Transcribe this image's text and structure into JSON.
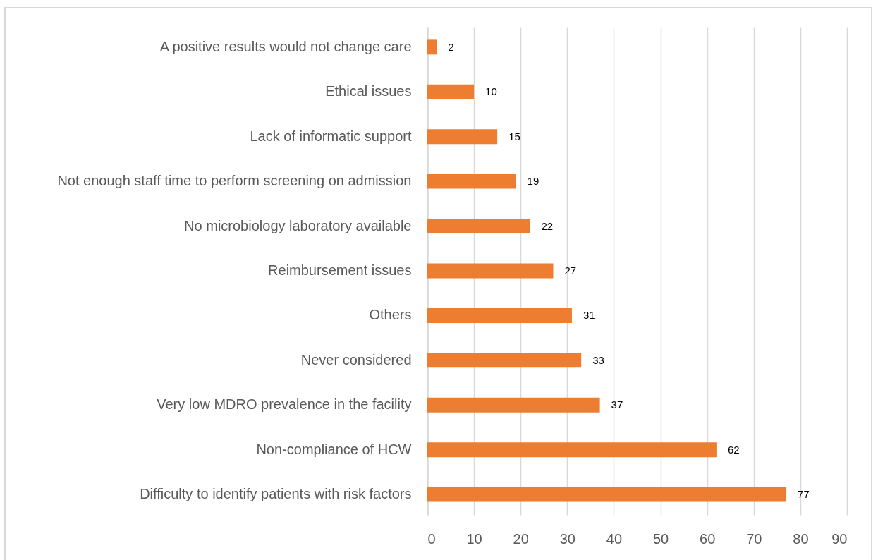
{
  "chart_data": {
    "type": "bar",
    "orientation": "horizontal",
    "categories": [
      "A positive results would not change care",
      "Ethical issues",
      "Lack of informatic support",
      "Not enough staff time to perform screening on admission",
      "No microbiology laboratory available",
      "Reimbursement issues",
      "Others",
      "Never considered",
      "Very low MDRO prevalence in the facility",
      "Non-compliance of HCW",
      "Difficulty to identify patients with risk factors"
    ],
    "values": [
      2,
      10,
      15,
      19,
      22,
      27,
      31,
      33,
      37,
      62,
      77
    ],
    "color": "#ed7d31",
    "xlim": [
      0,
      90
    ],
    "xticks": [
      0,
      10,
      20,
      30,
      40,
      50,
      60,
      70,
      80,
      90
    ],
    "grid": "x",
    "data_labels": true
  }
}
